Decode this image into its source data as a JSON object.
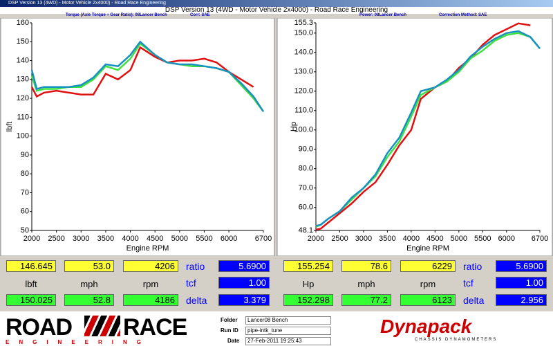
{
  "window": {
    "title": "DSP Version 13 (4WD) - Motor Vehicle 2x4000) - Road Race Engineering"
  },
  "header": {
    "title": "DSP Version 13 (4WD - Motor Vehicle 2x4000) - Road Race Engineering",
    "left_info": "Torque (Axle Torque ÷ Gear Ratio): 08Lancer Bench",
    "left_corr": "Corr: SAE",
    "right_info": "Power: 08Lancer Bench",
    "right_corr": "Correction Method: SAE"
  },
  "chart_data": [
    {
      "type": "line",
      "xlabel": "Engine RPM",
      "ylabel": "lbft",
      "x": [
        2000,
        2100,
        2250,
        2500,
        2750,
        3000,
        3250,
        3500,
        3750,
        4000,
        4200,
        4500,
        4750,
        5000,
        5250,
        5500,
        5750,
        6000,
        6250,
        6500,
        6700
      ],
      "series": [
        {
          "color": "#e01010",
          "values": [
            126,
            121,
            123,
            124,
            123,
            122,
            122,
            133,
            130,
            135,
            147,
            142,
            139,
            140,
            140,
            141,
            139,
            134,
            130,
            126,
            null
          ]
        },
        {
          "color": "#40e040",
          "values": [
            132,
            124,
            125,
            125,
            126,
            126,
            130,
            137,
            135,
            141,
            149,
            143,
            139,
            138,
            137,
            137,
            136,
            134,
            127,
            120,
            113
          ]
        },
        {
          "color": "#1890c0",
          "values": [
            135,
            125,
            126,
            126,
            126,
            127,
            131,
            138,
            137,
            143,
            150,
            143,
            139,
            138,
            138,
            137,
            136,
            134,
            128,
            121,
            113
          ]
        }
      ],
      "xlim": [
        2000,
        6700
      ],
      "xticks": [
        2000,
        2500,
        3000,
        3500,
        4000,
        4500,
        5000,
        5500,
        6000,
        6700
      ],
      "ylim": [
        50,
        160
      ],
      "yticks": [
        50,
        60,
        70,
        80,
        90,
        100,
        110,
        120,
        130,
        140,
        150,
        160
      ],
      "grid": false
    },
    {
      "type": "line",
      "xlabel": "Engine RPM",
      "ylabel": "Hp",
      "x": [
        2000,
        2100,
        2250,
        2500,
        2750,
        3000,
        3250,
        3500,
        3750,
        4000,
        4200,
        4500,
        4750,
        5000,
        5250,
        5500,
        5750,
        6000,
        6250,
        6500,
        6700
      ],
      "series": [
        {
          "color": "#e01010",
          "values": [
            48.5,
            49,
            52,
            57,
            62,
            68,
            73,
            82,
            92,
            100,
            116,
            122,
            125,
            132,
            137,
            144,
            149,
            152,
            155,
            154,
            null
          ]
        },
        {
          "color": "#40e040",
          "values": [
            50,
            51,
            54,
            58,
            64,
            70,
            76,
            86,
            94,
            107,
            118,
            122,
            125,
            130,
            137,
            141,
            146,
            149,
            150,
            148,
            142
          ]
        },
        {
          "color": "#1890c0",
          "values": [
            50.5,
            51,
            54,
            58,
            65,
            70,
            77,
            88,
            96,
            109,
            120,
            122,
            126,
            131,
            138,
            143,
            147,
            150,
            151,
            148,
            142
          ]
        }
      ],
      "xlim": [
        2000,
        6700
      ],
      "xticks": [
        2000,
        2500,
        3000,
        3500,
        4000,
        4500,
        5000,
        5500,
        6000,
        6700
      ],
      "ylim": [
        48.1,
        155.3
      ],
      "yticks": [
        48.1,
        {
          "value": 60,
          "label": "60.0"
        },
        {
          "value": 70,
          "label": "70.0"
        },
        {
          "value": 80,
          "label": "80.0"
        },
        {
          "value": 90,
          "label": "90.0"
        },
        {
          "value": 100,
          "label": "100.0"
        },
        {
          "value": 110,
          "label": "110.0"
        },
        {
          "value": 120,
          "label": "120.0"
        },
        {
          "value": 130,
          "label": "130.0"
        },
        {
          "value": 140,
          "label": "140.0"
        },
        {
          "value": 150,
          "label": "150.0"
        },
        155.3
      ],
      "grid": false
    }
  ],
  "readouts": [
    {
      "top": [
        "146.645",
        "53.0",
        "4206"
      ],
      "labels": [
        "lbft",
        "mph",
        "rpm"
      ],
      "bottom": [
        "150.025",
        "52.8",
        "4186"
      ],
      "side_labels": [
        "ratio",
        "tcf",
        "delta"
      ],
      "side_values": [
        "5.6900",
        "1.00",
        "3.379"
      ]
    },
    {
      "top": [
        "155.254",
        "78.6",
        "6229"
      ],
      "labels": [
        "Hp",
        "mph",
        "rpm"
      ],
      "bottom": [
        "152.298",
        "77.2",
        "6123"
      ],
      "side_labels": [
        "ratio",
        "tcf",
        "delta"
      ],
      "side_values": [
        "5.6900",
        "1.00",
        "2.956"
      ]
    }
  ],
  "footer": {
    "logo_left": "ROAD",
    "logo_right": "RACE",
    "logo_sub": "ENGINEERING",
    "folder_label": "Folder",
    "folder": "Lancer08 Bench",
    "run_label": "Run ID",
    "run_id": "pipe-intk_tune",
    "date_label": "Date",
    "date": "27-Feb-2011 19:25:43",
    "brand": "Dynapack",
    "brand_sub": "CHASSIS DYNAMOMETERS"
  }
}
